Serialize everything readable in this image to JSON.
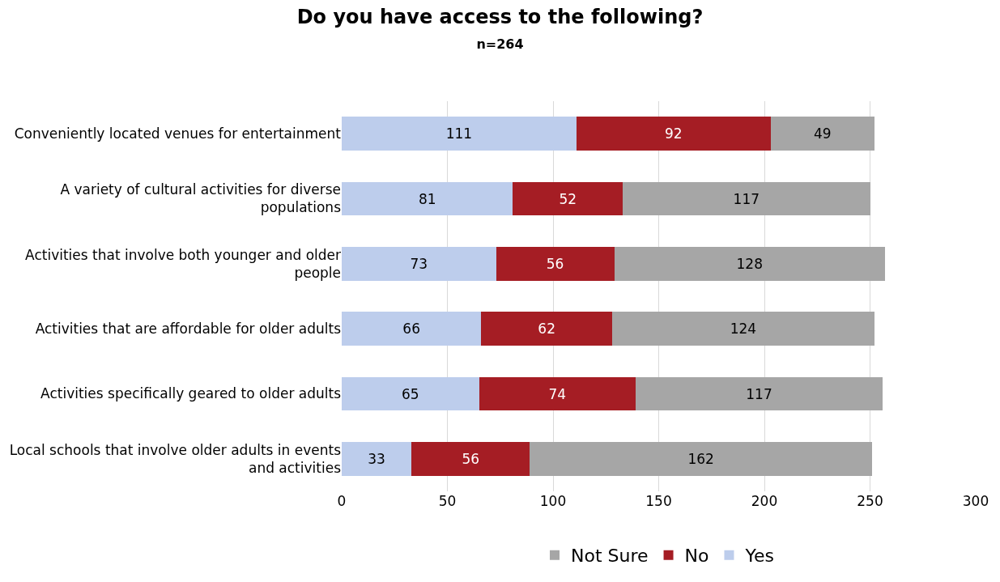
{
  "chart_data": {
    "type": "bar",
    "orientation": "horizontal",
    "stacked": true,
    "title": "Do you have access to the following?",
    "subtitle": "n=264",
    "categories": [
      "Conveniently located venues for entertainment",
      "A variety of cultural activities for diverse populations",
      "Activities that involve both younger and older people",
      "Activities that are affordable for older adults",
      "Activities specifically geared to older adults",
      "Local schools that involve older adults in events and activities"
    ],
    "series": [
      {
        "name": "Yes",
        "color": "#bdcdec",
        "values": [
          111,
          81,
          73,
          66,
          65,
          33
        ]
      },
      {
        "name": "No",
        "color": "#a51d24",
        "values": [
          92,
          52,
          56,
          62,
          74,
          56
        ]
      },
      {
        "name": "Not Sure",
        "color": "#a6a6a6",
        "values": [
          49,
          117,
          128,
          124,
          117,
          162
        ]
      }
    ],
    "xlim": [
      0,
      300
    ],
    "xticks": [
      0,
      50,
      100,
      150,
      200,
      250,
      300
    ],
    "grid": "x",
    "legend": "bottom",
    "data_labels": true
  }
}
